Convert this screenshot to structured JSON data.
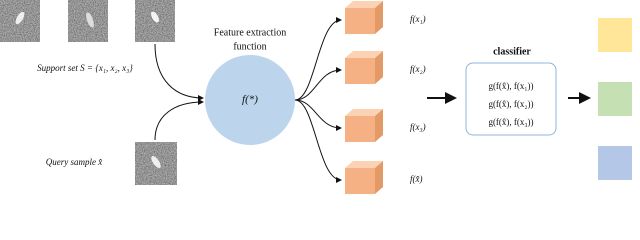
{
  "support_set": {
    "label": "Support set S = {x₁, x₂, x₃}"
  },
  "query": {
    "label": "Query sample x̂"
  },
  "feature_extractor": {
    "title_lines": [
      "Feature extraction",
      "function"
    ],
    "symbol": "f(*)"
  },
  "features": [
    "f(x₁)",
    "f(x₂)",
    "f(x₃)",
    "f(x̂)"
  ],
  "classifier": {
    "title": "classifier",
    "rows": [
      "g(f(x̂), f(x₁))",
      "g(f(x̂), f(x₂))",
      "g(f(x̂), f(x₃))"
    ]
  }
}
